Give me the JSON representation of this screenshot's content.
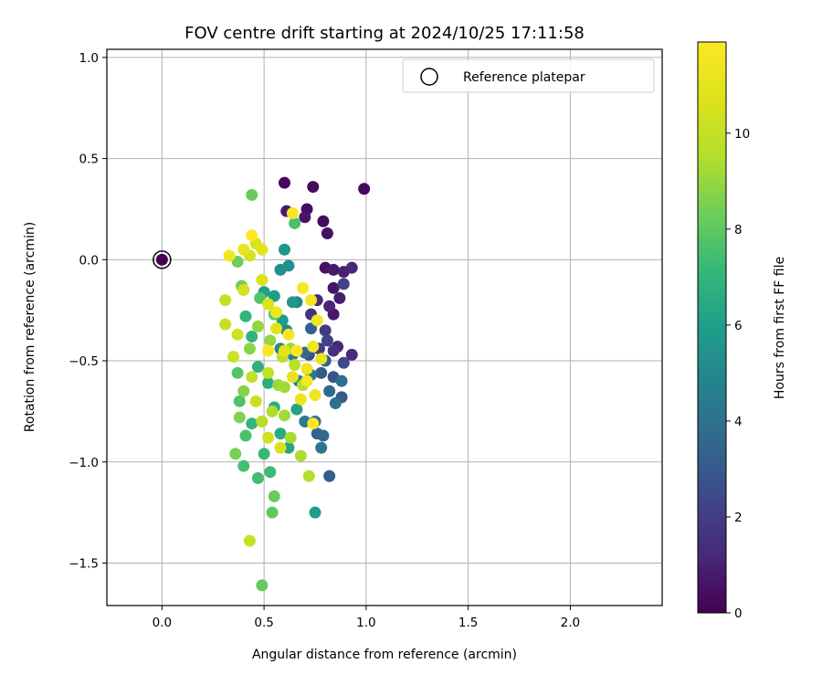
{
  "chart_data": {
    "type": "scatter",
    "title": "FOV centre drift starting at 2024/10/25 17:11:58",
    "xlabel": "Angular distance from reference (arcmin)",
    "ylabel": "Rotation from reference (arcmin)",
    "xlim": [
      -0.27,
      2.45
    ],
    "ylim": [
      -1.71,
      1.04
    ],
    "xticks": [
      0.0,
      0.5,
      1.0,
      1.5,
      2.0
    ],
    "yticks": [
      -1.5,
      -1.0,
      -0.5,
      0.0,
      0.5,
      1.0
    ],
    "xtick_labels": [
      "0.0",
      "0.5",
      "1.0",
      "1.5",
      "2.0"
    ],
    "ytick_labels": [
      "−1.5",
      "−1.0",
      "−0.5",
      "0.0",
      "0.5",
      "1.0"
    ],
    "grid": true,
    "legend": {
      "placement": "top-right",
      "entries": [
        "Reference platepar"
      ]
    },
    "reference_point": {
      "x": 0.0,
      "y": 0.0,
      "hours": 0
    },
    "colorbar": {
      "label": "Hours from first FF file",
      "colormap": "viridis",
      "range": [
        0,
        11.9
      ],
      "ticks": [
        0,
        2,
        4,
        6,
        8,
        10
      ],
      "tick_labels": [
        "0",
        "2",
        "4",
        "6",
        "8",
        "10"
      ]
    },
    "points": [
      [
        0.6,
        0.38,
        0.2
      ],
      [
        0.74,
        0.36,
        0.3
      ],
      [
        0.99,
        0.35,
        0.2
      ],
      [
        0.71,
        0.25,
        0.4
      ],
      [
        0.79,
        0.19,
        0.3
      ],
      [
        0.81,
        0.13,
        0.5
      ],
      [
        0.7,
        0.21,
        0.6
      ],
      [
        0.61,
        0.24,
        0.8
      ],
      [
        0.8,
        -0.04,
        0.5
      ],
      [
        0.84,
        -0.05,
        0.8
      ],
      [
        0.89,
        -0.06,
        1.0
      ],
      [
        0.93,
        -0.04,
        1.2
      ],
      [
        0.84,
        -0.14,
        0.6
      ],
      [
        0.87,
        -0.19,
        0.9
      ],
      [
        0.82,
        -0.23,
        1.1
      ],
      [
        0.84,
        -0.27,
        0.7
      ],
      [
        0.76,
        -0.2,
        1.4
      ],
      [
        0.73,
        -0.27,
        1.6
      ],
      [
        0.89,
        -0.12,
        2.1
      ],
      [
        0.8,
        -0.35,
        1.8
      ],
      [
        0.84,
        -0.45,
        1.5
      ],
      [
        0.77,
        -0.44,
        2.0
      ],
      [
        0.93,
        -0.47,
        1.3
      ],
      [
        0.89,
        -0.51,
        2.4
      ],
      [
        0.86,
        -0.43,
        1.2
      ],
      [
        0.72,
        -0.47,
        2.5
      ],
      [
        0.81,
        -0.4,
        2.2
      ],
      [
        0.84,
        -0.58,
        2.8
      ],
      [
        0.78,
        -0.56,
        3.0
      ],
      [
        0.88,
        -0.68,
        2.9
      ],
      [
        0.8,
        -0.5,
        3.2
      ],
      [
        0.73,
        -0.34,
        3.3
      ],
      [
        0.82,
        -1.07,
        3.1
      ],
      [
        0.76,
        -0.86,
        3.4
      ],
      [
        0.82,
        -0.65,
        3.6
      ],
      [
        0.79,
        -0.87,
        3.6
      ],
      [
        0.7,
        -0.46,
        3.7
      ],
      [
        0.75,
        -0.8,
        3.8
      ],
      [
        0.88,
        -0.6,
        3.9
      ],
      [
        0.85,
        -0.71,
        4.0
      ],
      [
        0.78,
        -0.93,
        4.2
      ],
      [
        0.73,
        -0.57,
        4.4
      ],
      [
        0.7,
        -0.8,
        4.5
      ],
      [
        0.67,
        -0.6,
        4.6
      ],
      [
        0.64,
        -0.47,
        4.7
      ],
      [
        0.61,
        -0.35,
        4.8
      ],
      [
        0.66,
        -0.21,
        4.9
      ],
      [
        0.58,
        -0.44,
        5.0
      ],
      [
        0.58,
        -0.05,
        5.2
      ],
      [
        0.62,
        -0.03,
        5.4
      ],
      [
        0.6,
        0.05,
        5.6
      ],
      [
        0.64,
        -0.21,
        5.6
      ],
      [
        0.59,
        -0.3,
        5.8
      ],
      [
        0.75,
        -1.25,
        5.9
      ],
      [
        0.55,
        -0.18,
        6.0
      ],
      [
        0.5,
        -0.16,
        6.1
      ],
      [
        0.66,
        -0.74,
        6.2
      ],
      [
        0.62,
        -0.93,
        6.3
      ],
      [
        0.58,
        -0.86,
        6.5
      ],
      [
        0.55,
        -0.73,
        6.6
      ],
      [
        0.52,
        -0.61,
        6.7
      ],
      [
        0.47,
        -0.53,
        6.8
      ],
      [
        0.44,
        -0.38,
        6.9
      ],
      [
        0.41,
        -0.28,
        7.0
      ],
      [
        0.44,
        -0.81,
        7.1
      ],
      [
        0.5,
        -0.96,
        7.2
      ],
      [
        0.53,
        -1.05,
        7.3
      ],
      [
        0.47,
        -1.08,
        7.4
      ],
      [
        0.4,
        -1.02,
        7.5
      ],
      [
        0.41,
        -0.87,
        7.6
      ],
      [
        0.38,
        -0.7,
        7.7
      ],
      [
        0.37,
        -0.56,
        7.8
      ],
      [
        0.65,
        0.18,
        7.6
      ],
      [
        0.48,
        -0.19,
        7.8
      ],
      [
        0.55,
        -0.27,
        7.9
      ],
      [
        0.54,
        -1.25,
        8.0
      ],
      [
        0.49,
        -1.61,
        8.1
      ],
      [
        0.55,
        -1.17,
        8.2
      ],
      [
        0.44,
        0.32,
        8.2
      ],
      [
        0.37,
        -0.01,
        8.3
      ],
      [
        0.39,
        -0.13,
        8.4
      ],
      [
        0.36,
        -0.96,
        8.5
      ],
      [
        0.38,
        -0.78,
        8.6
      ],
      [
        0.4,
        -0.65,
        8.7
      ],
      [
        0.43,
        -0.44,
        8.8
      ],
      [
        0.47,
        -0.33,
        8.9
      ],
      [
        0.53,
        -0.4,
        9.0
      ],
      [
        0.57,
        -0.62,
        9.1
      ],
      [
        0.6,
        -0.77,
        9.2
      ],
      [
        0.63,
        -0.88,
        9.3
      ],
      [
        0.68,
        -0.97,
        9.4
      ],
      [
        0.72,
        -1.07,
        9.5
      ],
      [
        0.69,
        -0.62,
        9.6
      ],
      [
        0.65,
        -0.52,
        9.7
      ],
      [
        0.59,
        -0.48,
        9.8
      ],
      [
        0.52,
        -0.56,
        9.9
      ],
      [
        0.43,
        -1.39,
        10.0
      ],
      [
        0.31,
        -0.2,
        10.0
      ],
      [
        0.31,
        -0.32,
        10.1
      ],
      [
        0.35,
        -0.48,
        10.2
      ],
      [
        0.37,
        -0.37,
        10.3
      ],
      [
        0.4,
        -0.15,
        10.4
      ],
      [
        0.43,
        0.02,
        10.5
      ],
      [
        0.46,
        0.08,
        10.6
      ],
      [
        0.49,
        -0.1,
        10.7
      ],
      [
        0.52,
        -0.22,
        10.8
      ],
      [
        0.56,
        -0.34,
        10.9
      ],
      [
        0.6,
        -0.45,
        11.0
      ],
      [
        0.64,
        -0.58,
        11.1
      ],
      [
        0.68,
        -0.69,
        11.2
      ],
      [
        0.71,
        -0.54,
        11.3
      ],
      [
        0.74,
        -0.43,
        11.4
      ],
      [
        0.76,
        -0.3,
        11.5
      ],
      [
        0.73,
        -0.2,
        11.6
      ],
      [
        0.69,
        -0.14,
        11.7
      ],
      [
        0.64,
        0.23,
        11.8
      ],
      [
        0.44,
        0.12,
        11.9
      ],
      [
        0.33,
        0.02,
        11.5
      ],
      [
        0.4,
        0.05,
        11.2
      ],
      [
        0.49,
        0.05,
        10.9
      ],
      [
        0.52,
        -0.45,
        11.8
      ],
      [
        0.56,
        -0.26,
        11.3
      ],
      [
        0.62,
        -0.37,
        11.6
      ],
      [
        0.66,
        -0.45,
        11.9
      ],
      [
        0.71,
        -0.6,
        11.7
      ],
      [
        0.75,
        -0.67,
        11.4
      ],
      [
        0.78,
        -0.49,
        11.1
      ],
      [
        0.74,
        -0.81,
        11.8
      ],
      [
        0.58,
        -0.93,
        10.6
      ],
      [
        0.52,
        -0.88,
        10.3
      ],
      [
        0.46,
        -0.7,
        10.1
      ],
      [
        0.44,
        -0.58,
        9.9
      ],
      [
        0.49,
        -0.8,
        9.6
      ],
      [
        0.54,
        -0.75,
        9.4
      ],
      [
        0.6,
        -0.63,
        9.2
      ],
      [
        0.63,
        -0.44,
        9.0
      ]
    ]
  }
}
